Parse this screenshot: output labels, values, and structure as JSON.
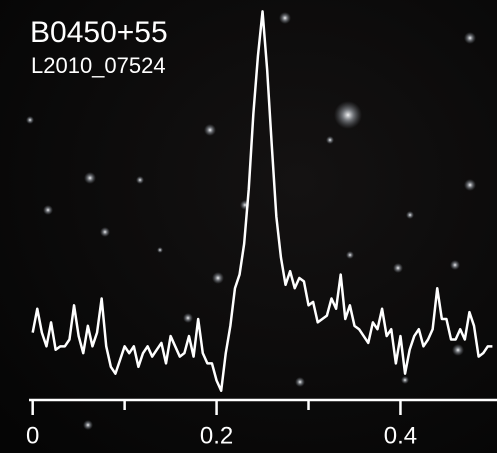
{
  "chart_data": {
    "type": "line",
    "title": "B0450+55",
    "subtitle": "L2010_07524",
    "x": [
      0,
      0.005,
      0.01,
      0.015,
      0.02,
      0.025,
      0.03,
      0.035,
      0.04,
      0.045,
      0.05,
      0.055,
      0.06,
      0.065,
      0.07,
      0.075,
      0.08,
      0.085,
      0.09,
      0.095,
      0.1,
      0.105,
      0.11,
      0.115,
      0.12,
      0.125,
      0.13,
      0.135,
      0.14,
      0.145,
      0.15,
      0.155,
      0.16,
      0.165,
      0.17,
      0.175,
      0.18,
      0.185,
      0.19,
      0.195,
      0.2,
      0.205,
      0.21,
      0.215,
      0.22,
      0.225,
      0.23,
      0.235,
      0.24,
      0.245,
      0.25,
      0.255,
      0.26,
      0.265,
      0.27,
      0.275,
      0.28,
      0.285,
      0.29,
      0.295,
      0.3,
      0.305,
      0.31,
      0.315,
      0.32,
      0.325,
      0.33,
      0.335,
      0.34,
      0.345,
      0.35,
      0.355,
      0.36,
      0.365,
      0.37,
      0.375,
      0.38,
      0.385,
      0.39,
      0.395,
      0.4,
      0.405,
      0.41,
      0.415,
      0.42,
      0.425,
      0.43,
      0.435,
      0.44,
      0.445,
      0.45,
      0.455,
      0.46,
      0.465,
      0.47,
      0.475,
      0.48,
      0.485,
      0.49,
      0.495,
      0.5
    ],
    "values": [
      0.05,
      0.12,
      0.05,
      0.01,
      0.08,
      0.0,
      0.01,
      0.01,
      0.03,
      0.13,
      0.04,
      -0.01,
      0.07,
      0.01,
      0.05,
      0.15,
      0.01,
      -0.05,
      -0.07,
      -0.03,
      0.01,
      -0.01,
      0.01,
      -0.05,
      -0.01,
      0.01,
      -0.02,
      0.0,
      0.02,
      -0.04,
      0.04,
      0.01,
      -0.02,
      -0.01,
      0.04,
      -0.02,
      0.09,
      -0.01,
      -0.04,
      -0.04,
      -0.09,
      -0.12,
      -0.01,
      0.07,
      0.18,
      0.22,
      0.31,
      0.47,
      0.69,
      0.86,
      0.99,
      0.82,
      0.6,
      0.39,
      0.27,
      0.19,
      0.23,
      0.18,
      0.21,
      0.2,
      0.13,
      0.14,
      0.08,
      0.09,
      0.1,
      0.15,
      0.12,
      0.22,
      0.09,
      0.13,
      0.07,
      0.06,
      0.04,
      0.02,
      0.08,
      0.06,
      0.12,
      0.04,
      0.06,
      -0.04,
      0.04,
      -0.07,
      0.0,
      0.04,
      0.06,
      0.01,
      0.03,
      0.06,
      0.18,
      0.09,
      0.09,
      0.03,
      0.03,
      0.06,
      0.03,
      0.11,
      0.07,
      -0.02,
      -0.01,
      0.01,
      0.01
    ],
    "color": "#ffffff",
    "xlim": [
      -0.004,
      0.505
    ],
    "ylim": [
      -0.15,
      1.0
    ],
    "xticks": [
      0,
      0.2,
      0.4
    ],
    "xminorticks": [
      0.1,
      0.3
    ]
  }
}
